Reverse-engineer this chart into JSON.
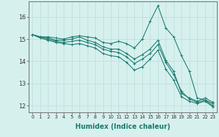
{
  "xlabel": "Humidex (Indice chaleur)",
  "ylabel": "",
  "background_color": "#d6f0ee",
  "grid_color": "#b8ddd8",
  "line_color": "#1a7a6e",
  "xlim": [
    -0.5,
    23.5
  ],
  "ylim": [
    11.7,
    16.7
  ],
  "yticks": [
    12,
    13,
    14,
    15,
    16
  ],
  "xticks": [
    0,
    1,
    2,
    3,
    4,
    5,
    6,
    7,
    8,
    9,
    10,
    11,
    12,
    13,
    14,
    15,
    16,
    17,
    18,
    19,
    20,
    21,
    22,
    23
  ],
  "series": [
    [
      15.2,
      15.1,
      15.1,
      15.05,
      15.0,
      15.1,
      15.15,
      15.1,
      15.05,
      14.85,
      14.8,
      14.9,
      14.8,
      14.6,
      15.0,
      15.8,
      16.5,
      15.5,
      15.1,
      14.25,
      13.55,
      12.35,
      12.25,
      12.1
    ],
    [
      15.2,
      15.1,
      15.05,
      14.95,
      14.95,
      15.0,
      15.1,
      14.95,
      14.85,
      14.65,
      14.55,
      14.55,
      14.35,
      14.1,
      14.3,
      14.55,
      14.95,
      14.05,
      13.55,
      12.55,
      12.35,
      12.2,
      12.35,
      12.15
    ],
    [
      15.2,
      15.1,
      15.0,
      14.9,
      14.85,
      14.9,
      14.95,
      14.85,
      14.75,
      14.55,
      14.45,
      14.4,
      14.2,
      13.9,
      14.1,
      14.35,
      14.75,
      13.95,
      13.4,
      12.65,
      12.3,
      12.15,
      12.25,
      12.0
    ],
    [
      15.2,
      15.05,
      14.95,
      14.85,
      14.8,
      14.75,
      14.8,
      14.7,
      14.6,
      14.35,
      14.25,
      14.2,
      13.95,
      13.6,
      13.75,
      14.1,
      14.5,
      13.65,
      13.15,
      12.4,
      12.2,
      12.1,
      12.2,
      11.95
    ]
  ],
  "marker": "+",
  "markersize": 3,
  "linewidth": 0.8
}
